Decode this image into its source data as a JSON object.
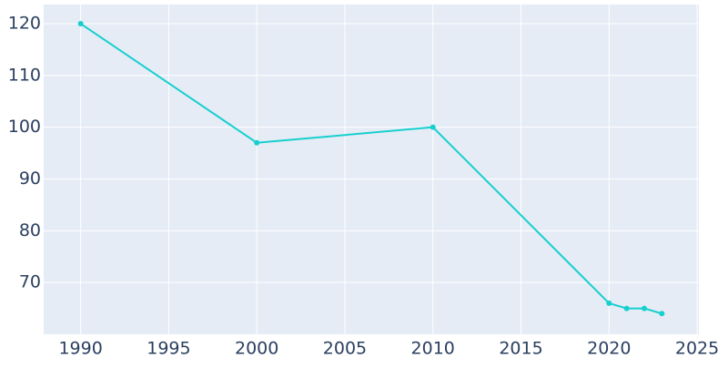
{
  "chart_data": {
    "type": "line",
    "x": [
      1990,
      2000,
      2010,
      2020,
      2021,
      2022,
      2023
    ],
    "values": [
      120,
      97,
      100,
      66,
      65,
      65,
      64
    ],
    "color": "#17cfcf",
    "xlim": [
      1987.9,
      2025.1
    ],
    "xticks": [
      1990,
      1995,
      2000,
      2005,
      2010,
      2015,
      2020,
      2025
    ],
    "ylim": [
      60,
      123.7
    ],
    "yticks": [
      70,
      80,
      90,
      100,
      110,
      120
    ],
    "grid": true
  }
}
